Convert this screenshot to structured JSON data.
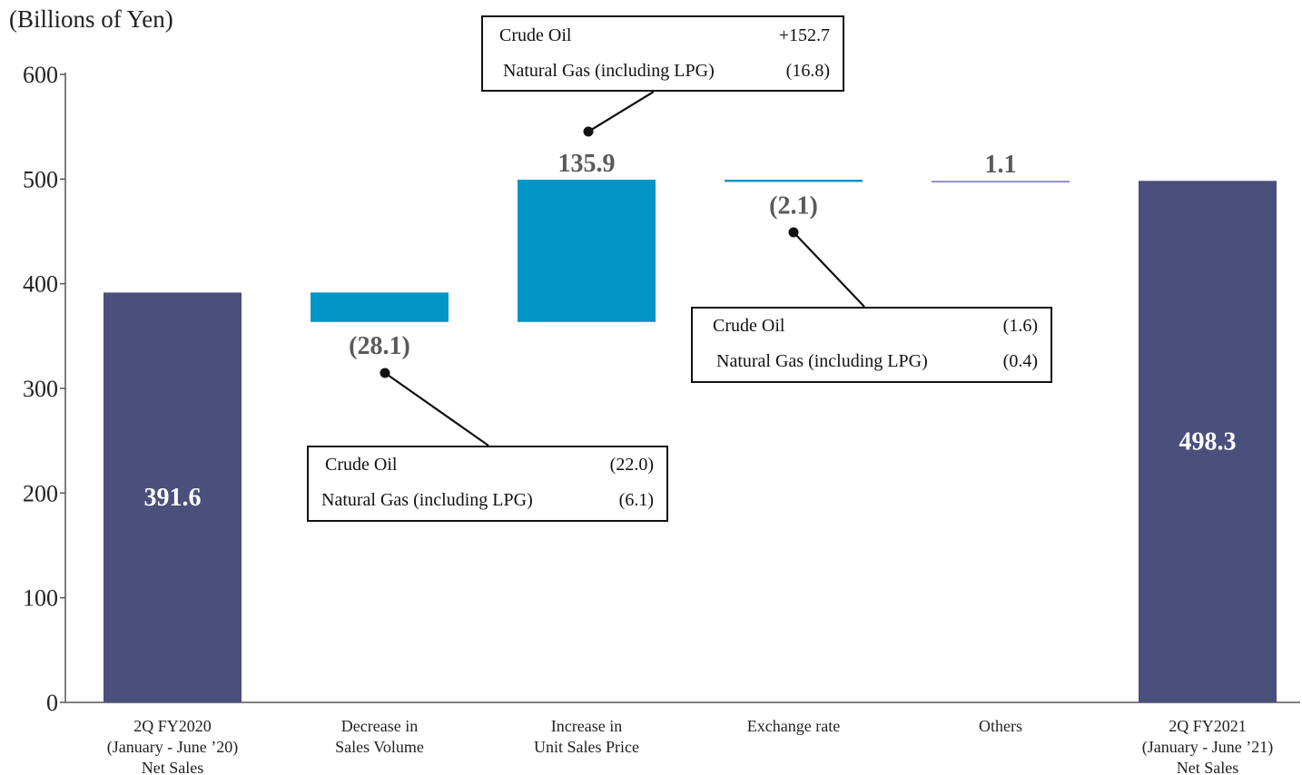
{
  "chart_data": {
    "type": "waterfall",
    "y_axis_unit": "(Billions of Yen)",
    "ylim": [
      0,
      600
    ],
    "yticks": [
      0,
      100,
      200,
      300,
      400,
      500,
      600
    ],
    "grid": false,
    "categories": [
      [
        "2Q FY2020",
        "(January - June ’20)",
        "Net Sales"
      ],
      [
        "Decrease in",
        "Sales Volume"
      ],
      [
        "Increase in",
        "Unit Sales Price"
      ],
      [
        "Exchange rate"
      ],
      [
        "Others"
      ],
      [
        "2Q FY2021",
        "(January - June ’21)",
        "Net Sales"
      ]
    ],
    "bars": [
      {
        "kind": "total",
        "value": 391.6,
        "label": "391.6",
        "color": "#4b4f7c"
      },
      {
        "kind": "delta",
        "value": -28.1,
        "label": "(28.1)",
        "color": "#0095c4"
      },
      {
        "kind": "delta",
        "value": 135.9,
        "label": "135.9",
        "color": "#0095c4"
      },
      {
        "kind": "delta",
        "value": -2.1,
        "label": "(2.1)",
        "color": "#0095c4"
      },
      {
        "kind": "delta",
        "value": 1.1,
        "label": "1.1",
        "color": "#8e8cc4"
      },
      {
        "kind": "total",
        "value": 498.3,
        "label": "498.3",
        "color": "#4b4f7c"
      }
    ],
    "breakdowns": [
      {
        "bar": 1,
        "rows": [
          {
            "name": "Crude Oil",
            "value": "(22.0)"
          },
          {
            "name": "Natural Gas (including LPG)",
            "value": "(6.1)"
          }
        ]
      },
      {
        "bar": 2,
        "rows": [
          {
            "name": "Crude Oil",
            "value": "+152.7"
          },
          {
            "name": "Natural Gas (including LPG)",
            "value": "(16.8)"
          }
        ]
      },
      {
        "bar": 3,
        "rows": [
          {
            "name": "Crude Oil",
            "value": "(1.6)"
          },
          {
            "name": "Natural Gas (including LPG)",
            "value": "(0.4)"
          }
        ]
      }
    ]
  }
}
